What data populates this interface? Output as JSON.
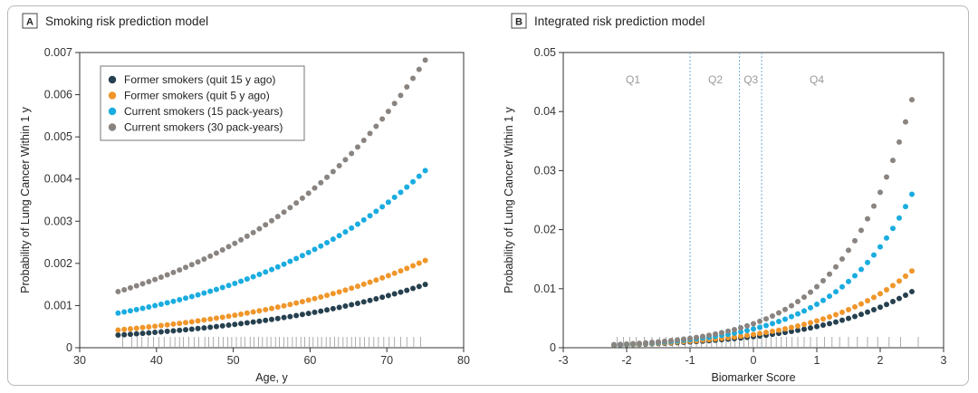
{
  "chart_data": [
    {
      "type": "scatter",
      "panel_letter": "A",
      "title": "Smoking risk prediction model",
      "xlabel": "Age, y",
      "ylabel": "Probability of Lung Cancer Within 1 y",
      "xlim": [
        30,
        80
      ],
      "ylim": [
        0,
        0.007
      ],
      "xticks": [
        30,
        40,
        50,
        60,
        70,
        80
      ],
      "yticks": [
        0,
        0.001,
        0.002,
        0.003,
        0.004,
        0.005,
        0.006,
        0.007
      ],
      "ytick_labels": [
        "0",
        "0.001",
        "0.002",
        "0.003",
        "0.004",
        "0.005",
        "0.006",
        "0.007"
      ],
      "legend_position": "top-left",
      "x_range": [
        35,
        75
      ],
      "n_points": 51,
      "series": [
        {
          "name": "Former smokers (quit 15 y ago)",
          "color": "#26404f",
          "start": 0.0003,
          "end": 0.0015
        },
        {
          "name": "Former smokers (quit 5 y ago)",
          "color": "#f0962a",
          "start": 0.00042,
          "end": 0.00207
        },
        {
          "name": "Current smokers (15 pack-years)",
          "color": "#1aace0",
          "start": 0.00082,
          "end": 0.0042
        },
        {
          "name": "Current smokers (30 pack-years)",
          "color": "#8a8480",
          "start": 0.00133,
          "end": 0.00682
        }
      ],
      "rug_x": [
        35.6,
        36.8,
        37.5,
        38.1,
        38.9,
        39.6,
        40.3,
        41.0,
        41.8,
        42.4,
        43.0,
        43.5,
        44.2,
        44.9,
        45.5,
        46.3,
        46.8,
        47.4,
        48.1,
        48.7,
        49.3,
        49.8,
        50.4,
        51.0,
        51.5,
        52.2,
        52.7,
        53.3,
        53.8,
        54.4,
        54.9,
        55.5,
        56.0,
        56.6,
        57.1,
        57.7,
        58.2,
        58.8,
        59.3,
        59.9,
        60.4,
        61.0,
        61.5,
        62.1,
        62.6,
        63.2,
        63.7,
        64.3,
        64.8,
        65.4,
        65.9,
        66.5,
        67.1,
        67.7,
        68.3,
        68.9,
        69.6,
        70.3,
        71.0,
        71.8,
        72.6,
        73.5,
        74.4
      ]
    },
    {
      "type": "scatter",
      "panel_letter": "B",
      "title": "Integrated risk prediction model",
      "xlabel": "Biomarker Score",
      "ylabel": "Probability of Lung Cancer Within 1 y",
      "xlim": [
        -3,
        3
      ],
      "ylim": [
        0,
        0.05
      ],
      "xticks": [
        -3,
        -2,
        -1,
        0,
        1,
        2,
        3
      ],
      "yticks": [
        0,
        0.01,
        0.02,
        0.03,
        0.04,
        0.05
      ],
      "ytick_labels": [
        "0",
        "0.01",
        "0.02",
        "0.03",
        "0.04",
        "0.05"
      ],
      "x_range": [
        -2.2,
        2.5
      ],
      "n_points": 48,
      "quartile_lines": [
        -1.0,
        -0.22,
        0.13
      ],
      "quartile_labels": [
        {
          "label": "Q1",
          "x": -1.9
        },
        {
          "label": "Q2",
          "x": -0.6
        },
        {
          "label": "Q3",
          "x": -0.04
        },
        {
          "label": "Q4",
          "x": 1.0
        }
      ],
      "series": [
        {
          "name": "Former smokers (quit 15 y ago)",
          "color": "#26404f",
          "start": 0.00045,
          "end": 0.0095
        },
        {
          "name": "Former smokers (quit 5 y ago)",
          "color": "#f0962a",
          "start": 0.00048,
          "end": 0.013
        },
        {
          "name": "Current smokers (15 pack-years)",
          "color": "#1aace0",
          "start": 0.0005,
          "end": 0.026
        },
        {
          "name": "Current smokers (30 pack-years)",
          "color": "#8a8480",
          "start": 0.00052,
          "end": 0.042
        }
      ],
      "rug_x": [
        -2.15,
        -2.05,
        -1.95,
        -1.85,
        -1.72,
        -1.6,
        -1.48,
        -1.38,
        -1.28,
        -1.18,
        -1.08,
        -0.98,
        -0.9,
        -0.82,
        -0.74,
        -0.66,
        -0.58,
        -0.5,
        -0.43,
        -0.36,
        -0.29,
        -0.22,
        -0.15,
        -0.08,
        -0.01,
        0.06,
        0.13,
        0.2,
        0.28,
        0.36,
        0.44,
        0.52,
        0.61,
        0.7,
        0.8,
        0.9,
        1.0,
        1.12,
        1.24,
        1.36,
        1.5,
        1.64,
        1.8,
        1.96,
        2.14,
        2.32,
        2.6
      ]
    }
  ]
}
